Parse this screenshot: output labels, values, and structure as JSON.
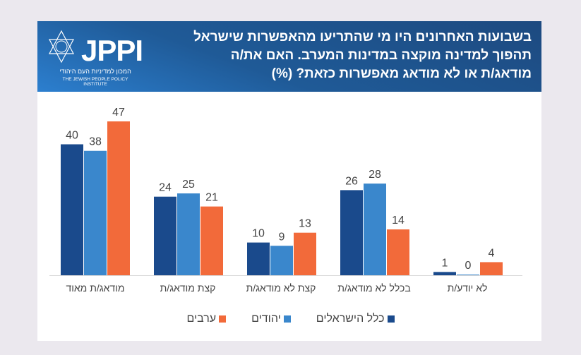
{
  "header": {
    "title_lines": [
      "בשבועות האחרונים היו מי שהתריעו מהאפשרות שישראל",
      "תהפוך למדינה מוקצה במדינות המערב. האם את/ה",
      "מודאג/ת או לא מודאג מאפשרות כזאת? (%)"
    ],
    "logo_text": "JPPI",
    "logo_hebrew": "המכון למדיניות העם היהודי",
    "logo_english": "THE JEWISH PEOPLE POLICY INSTITUTE"
  },
  "chart_data": {
    "type": "bar",
    "title": "בשבועות האחרונים היו מי שהתריעו מהאפשרות שישראל תהפוך למדינה מוקצה במדינות המערב. האם את/ה מודאג/ת או לא מודאג מאפשרות כזאת? (%)",
    "categories": [
      "מודאג/ת מאוד",
      "קצת מודאג/ת",
      "קצת לא מודאג/ת",
      "בכלל לא מודאג/ת",
      "לא יודע/ת"
    ],
    "series": [
      {
        "name": "כלל הישראלים",
        "color": "#1a4a8c",
        "values": [
          40,
          24,
          10,
          26,
          1
        ]
      },
      {
        "name": "יהודים",
        "color": "#3a87cc",
        "values": [
          38,
          25,
          9,
          28,
          0
        ]
      },
      {
        "name": "ערבים",
        "color": "#f26a3a",
        "values": [
          47,
          21,
          13,
          14,
          4
        ]
      }
    ],
    "ylim": [
      0,
      47
    ],
    "grid": false,
    "legend": "bottom"
  }
}
